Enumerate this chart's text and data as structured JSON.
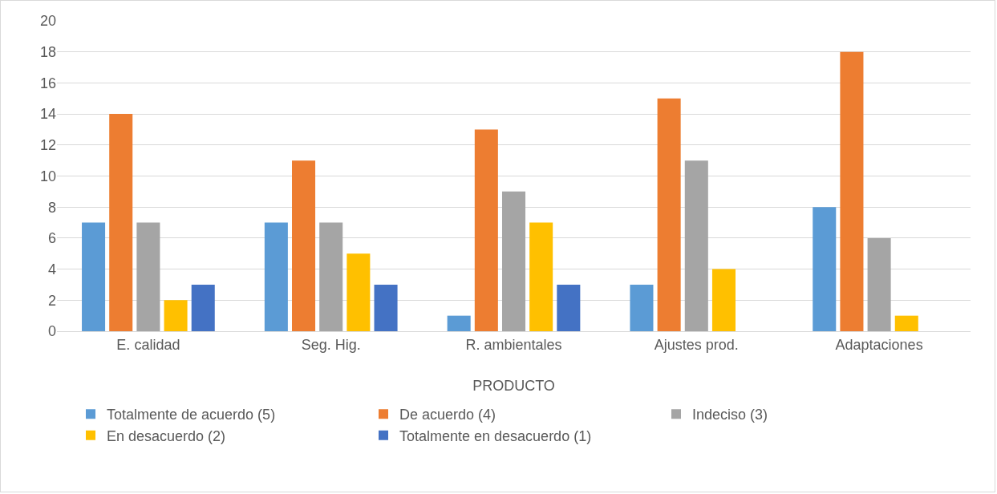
{
  "chart_data": {
    "type": "bar",
    "xlabel": "PRODUCTO",
    "categories": [
      "E. calidad",
      "Seg. Hig.",
      "R. ambientales",
      "Ajustes prod.",
      "Adaptaciones"
    ],
    "series": [
      {
        "name": "Totalmente de acuerdo (5)",
        "color": "#5b9bd5",
        "values": [
          7,
          7,
          1,
          3,
          8
        ]
      },
      {
        "name": "De acuerdo (4)",
        "color": "#ed7d31",
        "values": [
          14,
          11,
          13,
          15,
          18
        ]
      },
      {
        "name": "Indeciso (3)",
        "color": "#a5a5a5",
        "values": [
          7,
          7,
          9,
          11,
          6
        ]
      },
      {
        "name": "En desacuerdo (2)",
        "color": "#ffc000",
        "values": [
          2,
          5,
          7,
          4,
          1
        ]
      },
      {
        "name": "Totalmente en desacuerdo (1)",
        "color": "#4472c4",
        "values": [
          3,
          3,
          3,
          0,
          0
        ]
      }
    ],
    "ylim": [
      0,
      20
    ],
    "yticks": [
      0,
      2,
      4,
      6,
      8,
      10,
      12,
      14,
      16,
      18,
      20
    ],
    "grid": "y",
    "legend": "bottom"
  }
}
